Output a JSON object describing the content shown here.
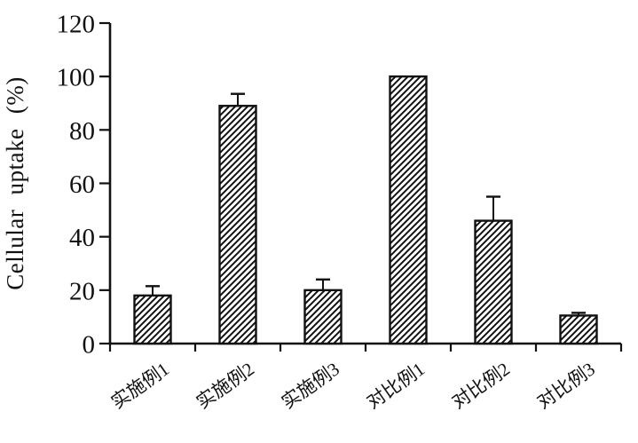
{
  "chart_data": {
    "type": "bar",
    "title": "",
    "ylabel": "Cellular uptake (%)",
    "xlabel": "",
    "categories": [
      "实施例1",
      "实施例2",
      "实施例3",
      "对比例1",
      "对比例2",
      "对比例3"
    ],
    "values": [
      18,
      89,
      20,
      100,
      46,
      10.5
    ],
    "errors_plus": [
      3.5,
      4.5,
      4,
      0,
      9,
      1
    ],
    "ylim": [
      0,
      120
    ],
    "yticks": [
      0,
      20,
      40,
      60,
      80,
      100,
      120
    ],
    "grid": false,
    "legend": "none",
    "bar_style": {
      "fill": "diagonal-hatch",
      "hatch_direction": "/",
      "outline_color": "#111111",
      "background": "#ffffff"
    },
    "axis_color": "#111111",
    "text_color": "#111111"
  }
}
